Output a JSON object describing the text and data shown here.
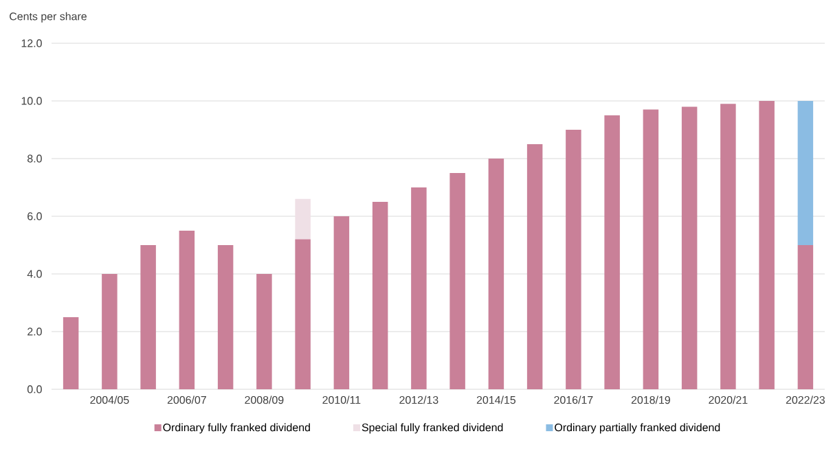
{
  "chart_data": {
    "type": "bar",
    "stacked": true,
    "ylabel": "Cents per share",
    "categories": [
      null,
      "2004/05",
      null,
      "2006/07",
      null,
      "2008/09",
      null,
      "2010/11",
      null,
      "2012/13",
      null,
      "2014/15",
      null,
      "2016/17",
      null,
      "2018/19",
      null,
      "2020/21",
      null,
      "2022/23"
    ],
    "series": [
      {
        "name": "Ordinary fully franked dividend",
        "color": "#c98098",
        "values": [
          2.5,
          4.0,
          5.0,
          5.5,
          5.0,
          4.0,
          5.2,
          6.0,
          6.5,
          7.0,
          7.5,
          8.0,
          8.5,
          9.0,
          9.5,
          9.7,
          9.8,
          9.9,
          10.0,
          5.0
        ]
      },
      {
        "name": "Special fully franked dividend",
        "color": "#efe0e6",
        "values": [
          null,
          null,
          null,
          null,
          null,
          null,
          1.4,
          null,
          null,
          null,
          null,
          null,
          null,
          null,
          null,
          null,
          null,
          null,
          null,
          null
        ]
      },
      {
        "name": "Ordinary partially franked dividend",
        "color": "#8bbce3",
        "values": [
          null,
          null,
          null,
          null,
          null,
          null,
          null,
          null,
          null,
          null,
          null,
          null,
          null,
          null,
          null,
          null,
          null,
          null,
          null,
          5.0
        ]
      }
    ],
    "ylim": [
      0,
      12
    ],
    "yticks": [
      {
        "value": 0,
        "label": "0.0"
      },
      {
        "value": 2,
        "label": "2.0"
      },
      {
        "value": 4,
        "label": "4.0"
      },
      {
        "value": 6,
        "label": "6.0"
      },
      {
        "value": 8,
        "label": "8.0"
      },
      {
        "value": 10,
        "label": "10.0"
      },
      {
        "value": 12,
        "label": "12.0"
      }
    ],
    "grid": "y",
    "legend": "bottom"
  }
}
